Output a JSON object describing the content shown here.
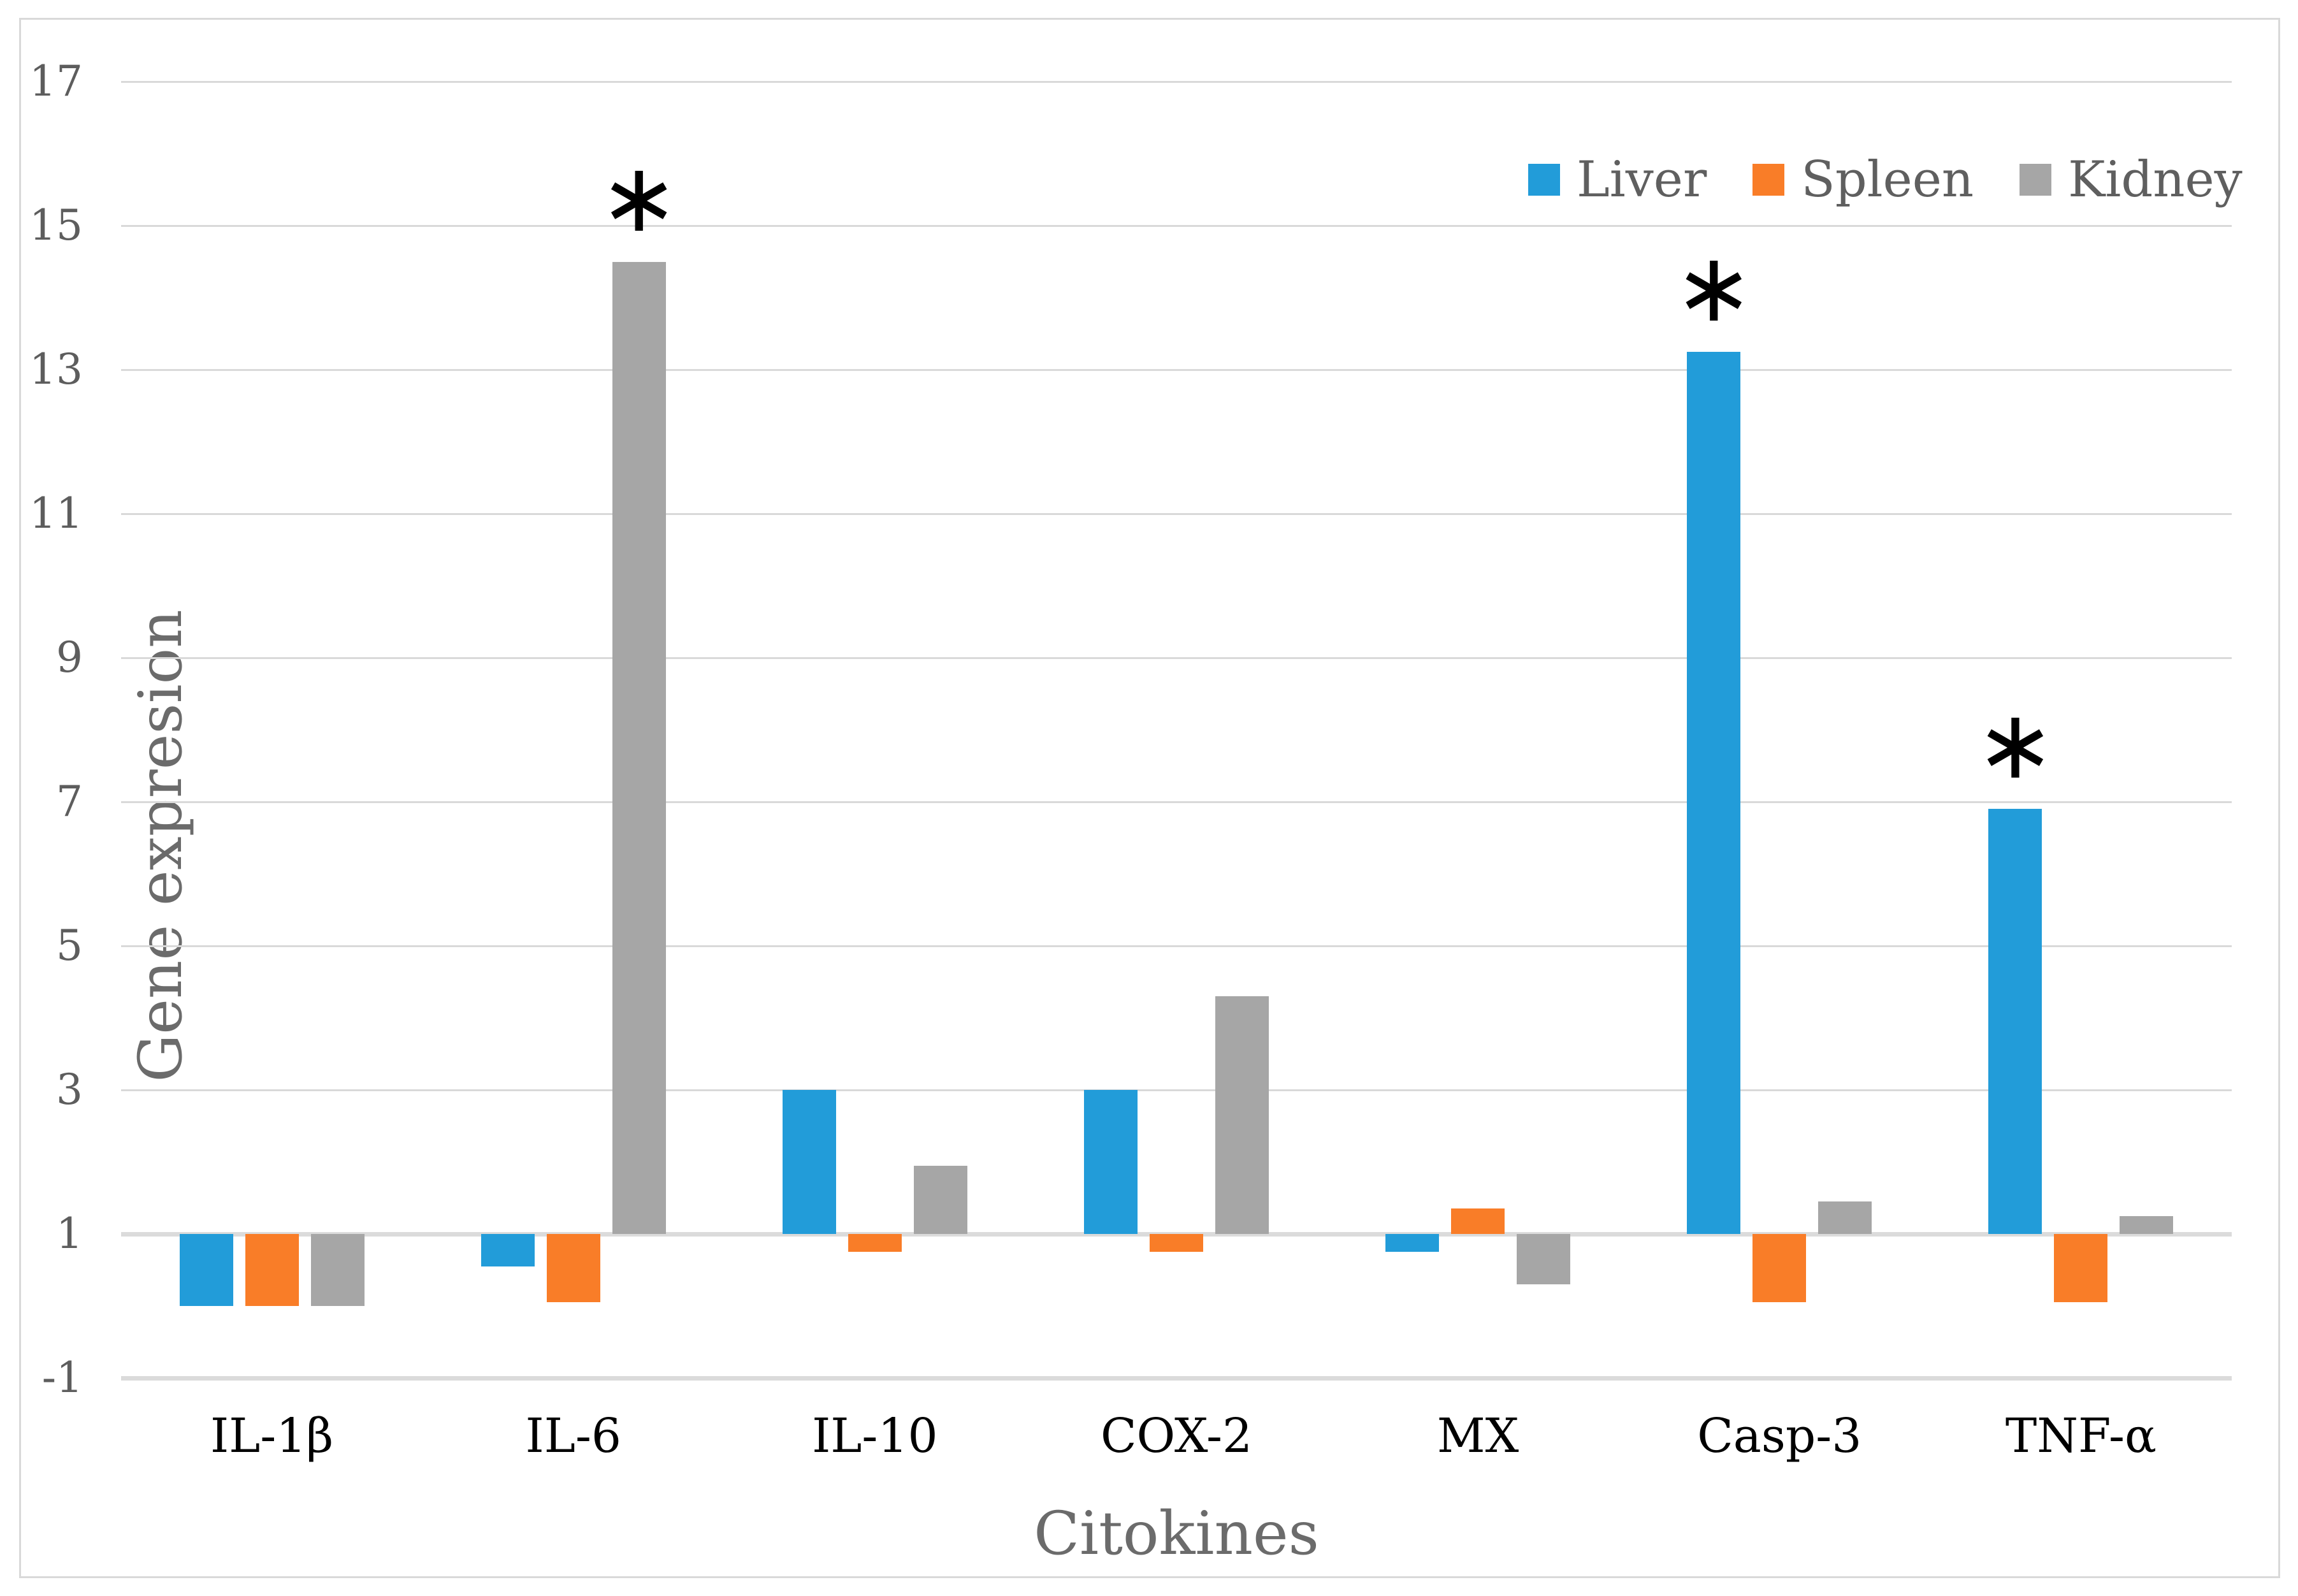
{
  "axis": {
    "x_title": "Citokines",
    "y_title": "Gene expresion"
  },
  "legend": {
    "position": "top-right",
    "items": [
      {
        "label": "Liver",
        "color": "#229CD9"
      },
      {
        "label": "Spleen",
        "color": "#F97D28"
      },
      {
        "label": "Kidney",
        "color": "#A6A6A6"
      }
    ]
  },
  "chart_data": {
    "type": "bar",
    "title": "",
    "xlabel": "Citokines",
    "ylabel": "Gene expresion",
    "categories": [
      "IL-1β",
      "IL-6",
      "IL-10",
      "COX-2",
      "MX",
      "Casp-3",
      "TNF-α"
    ],
    "series": [
      {
        "name": "Liver",
        "color": "#229CD9",
        "values": [
          0.0,
          0.55,
          3.0,
          3.0,
          0.75,
          13.25,
          6.9
        ]
      },
      {
        "name": "Spleen",
        "color": "#F97D28",
        "values": [
          0.0,
          0.05,
          0.75,
          0.75,
          1.35,
          0.05,
          0.05
        ]
      },
      {
        "name": "Kidney",
        "color": "#A6A6A6",
        "values": [
          0.0,
          14.5,
          1.95,
          4.3,
          0.3,
          1.45,
          1.25
        ]
      }
    ],
    "ylim": [
      -1,
      17
    ],
    "ytick_step": 2,
    "ytick_labels": [
      "-1",
      "1",
      "3",
      "5",
      "7",
      "9",
      "11",
      "13",
      "15",
      "17"
    ],
    "bar_baseline": 1,
    "grid": "horizontal",
    "gridline_color": "#D9D9D9",
    "legend_position": "top-right",
    "significance_markers": [
      {
        "category": "IL-6",
        "series": "Kidney",
        "symbol": "∗"
      },
      {
        "category": "Casp-3",
        "series": "Liver",
        "symbol": "∗"
      },
      {
        "category": "TNF-α",
        "series": "Liver",
        "symbol": "∗"
      }
    ]
  }
}
